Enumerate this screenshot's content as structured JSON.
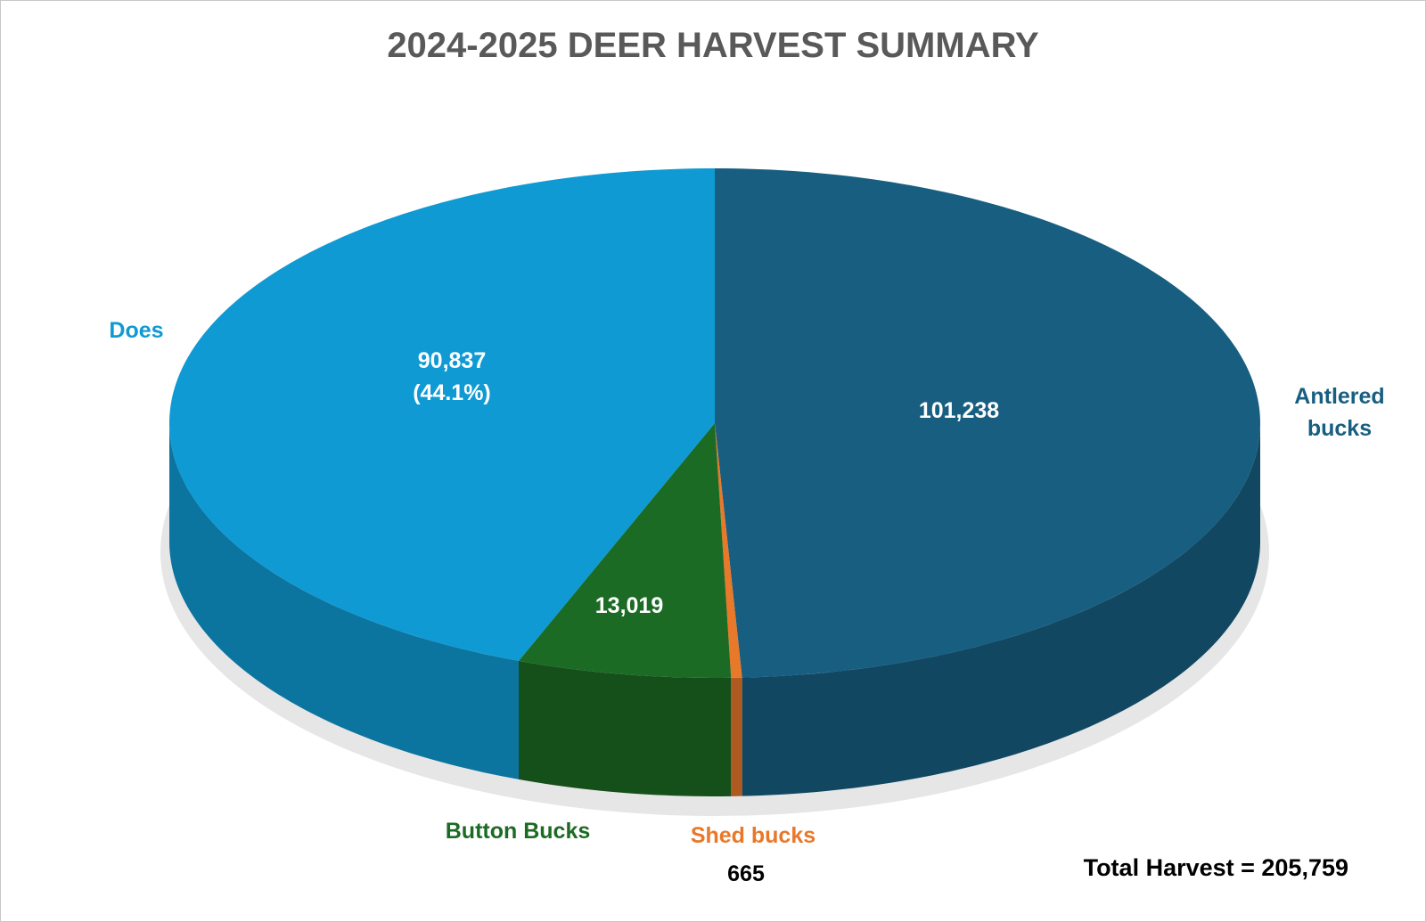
{
  "chart_data": {
    "type": "pie3d",
    "title": "2024-2025 DEER HARVEST SUMMARY",
    "categories": [
      "Antlered bucks",
      "Shed bucks",
      "Button Bucks",
      "Does"
    ],
    "values": [
      101238,
      665,
      13019,
      90837
    ],
    "value_labels": [
      "101,238",
      "665",
      "13,019",
      "90,837\n(44.1%)"
    ],
    "colors": [
      "#175e80",
      "#e8782a",
      "#1c6b24",
      "#0f9ad4"
    ],
    "annotation": "Total Harvest = 205,759"
  }
}
